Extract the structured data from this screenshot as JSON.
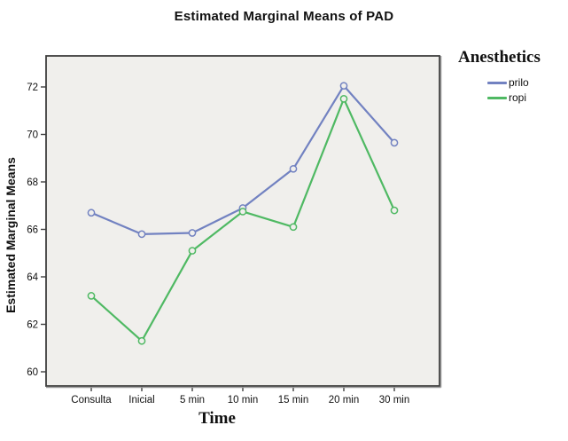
{
  "chart_data": {
    "type": "line",
    "title": "Estimated Marginal Means of PAD",
    "xlabel": "Time",
    "ylabel": "Estimated Marginal Means",
    "categories": [
      "Consulta",
      "Inicial",
      "5 min",
      "10 min",
      "15 min",
      "20 min",
      "30 min"
    ],
    "series": [
      {
        "name": "prilo",
        "color": "#7282c1",
        "values": [
          66.7,
          65.8,
          65.85,
          66.9,
          68.55,
          72.05,
          69.65
        ]
      },
      {
        "name": "ropi",
        "color": "#4fb963",
        "values": [
          63.2,
          61.3,
          65.1,
          66.75,
          66.1,
          71.5,
          66.8
        ]
      }
    ],
    "yticks": [
      60,
      62,
      64,
      66,
      68,
      70,
      72
    ],
    "ylim": [
      59.4,
      73.3
    ],
    "grid": false,
    "marker": "open-circle",
    "legend": {
      "title": "Anesthetics",
      "position": "top-right"
    },
    "colors": {
      "plot_background": "#f0efec",
      "frame": "#3e3e3e",
      "tick_label": "#111111"
    }
  }
}
